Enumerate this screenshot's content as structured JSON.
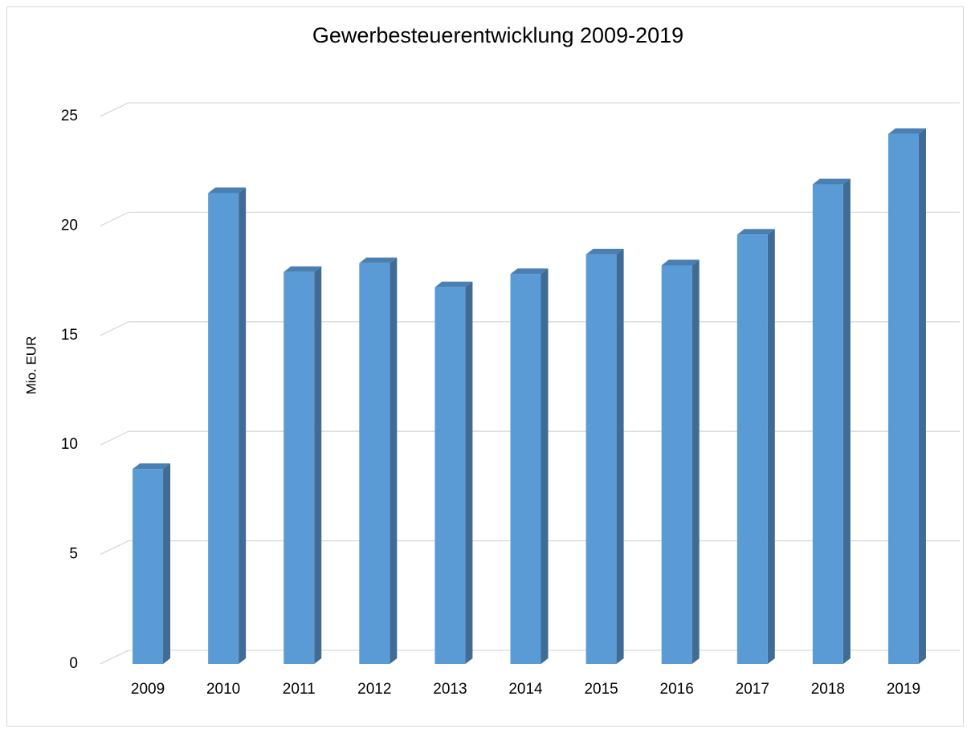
{
  "chart_data": {
    "type": "bar",
    "title": "Gewerbesteuerentwicklung 2009-2019",
    "y_label": "Mio. EUR",
    "categories": [
      "2009",
      "2010",
      "2011",
      "2012",
      "2013",
      "2014",
      "2015",
      "2016",
      "2017",
      "2018",
      "2019"
    ],
    "values": [
      8.9,
      21.5,
      17.9,
      18.3,
      17.2,
      17.8,
      18.7,
      18.2,
      19.6,
      21.9,
      24.2
    ],
    "color": "#5b9bd5",
    "ylim": [
      0,
      25
    ],
    "yticks": [
      0,
      5,
      10,
      15,
      20,
      25
    ],
    "grid": true
  }
}
